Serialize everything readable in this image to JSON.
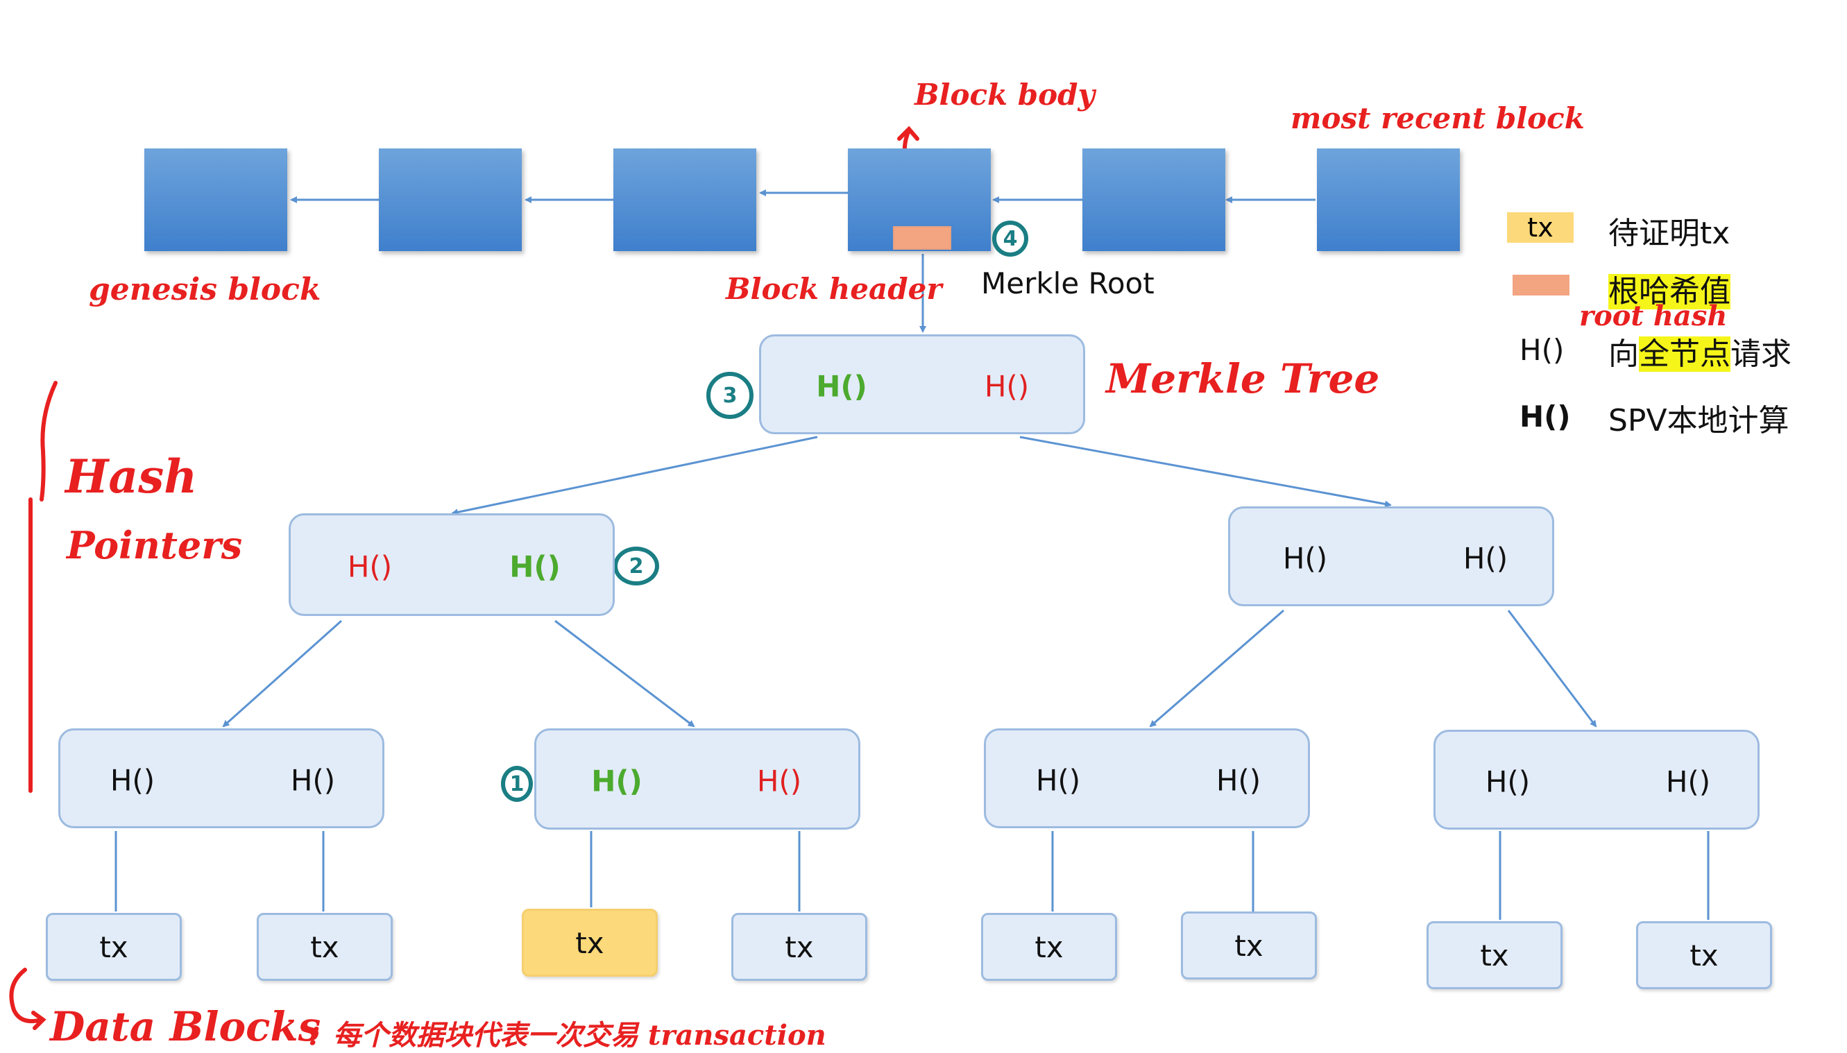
{
  "annotations": {
    "block_body": "Block body",
    "most_recent_block": "most recent block",
    "genesis_block": "genesis block",
    "block_header": "Block header",
    "merkle_root": "Merkle Root",
    "merkle_tree": "Merkle Tree",
    "hash_pointers_line1": "Hash",
    "hash_pointers_line2": "Pointers",
    "data_blocks": "Data Blocks",
    "data_blocks_desc": "：每个数据块代表一次交易 transaction",
    "step1": "1",
    "step2": "2",
    "step3": "3",
    "step4": "4"
  },
  "legend": {
    "tx_swatch": "tx",
    "tx_desc": "待证明tx",
    "root_desc_plain": "",
    "root_desc_hl": "根哈希值",
    "root_annot": "root   hash",
    "red_h": "H()",
    "red_desc_pre": "向",
    "red_desc_hl": "全节点",
    "red_desc_post": "请求",
    "green_h": "H()",
    "green_desc": "SPV本地计算"
  },
  "tree": {
    "root": {
      "left": "H()",
      "right": "H()"
    },
    "l1_left": {
      "left": "H()",
      "right": "H()"
    },
    "l1_right": {
      "left": "H()",
      "right": "H()"
    },
    "l2_0": {
      "left": "H()",
      "right": "H()"
    },
    "l2_1": {
      "left": "H()",
      "right": "H()"
    },
    "l2_2": {
      "left": "H()",
      "right": "H()"
    },
    "l2_3": {
      "left": "H()",
      "right": "H()"
    }
  },
  "leaves": [
    "tx",
    "tx",
    "tx",
    "tx",
    "tx",
    "tx",
    "tx",
    "tx"
  ],
  "colors": {
    "block_blue": "#4a89d4",
    "node_fill": "#e2ecf8",
    "header_orange": "#f3a582",
    "target_yellow": "#fcd97a",
    "annotation_red": "#e82020",
    "step_teal": "#1a7e84",
    "arrow_blue": "#5b93d2",
    "request_red": "#e02020",
    "local_green": "#4caa2e"
  }
}
